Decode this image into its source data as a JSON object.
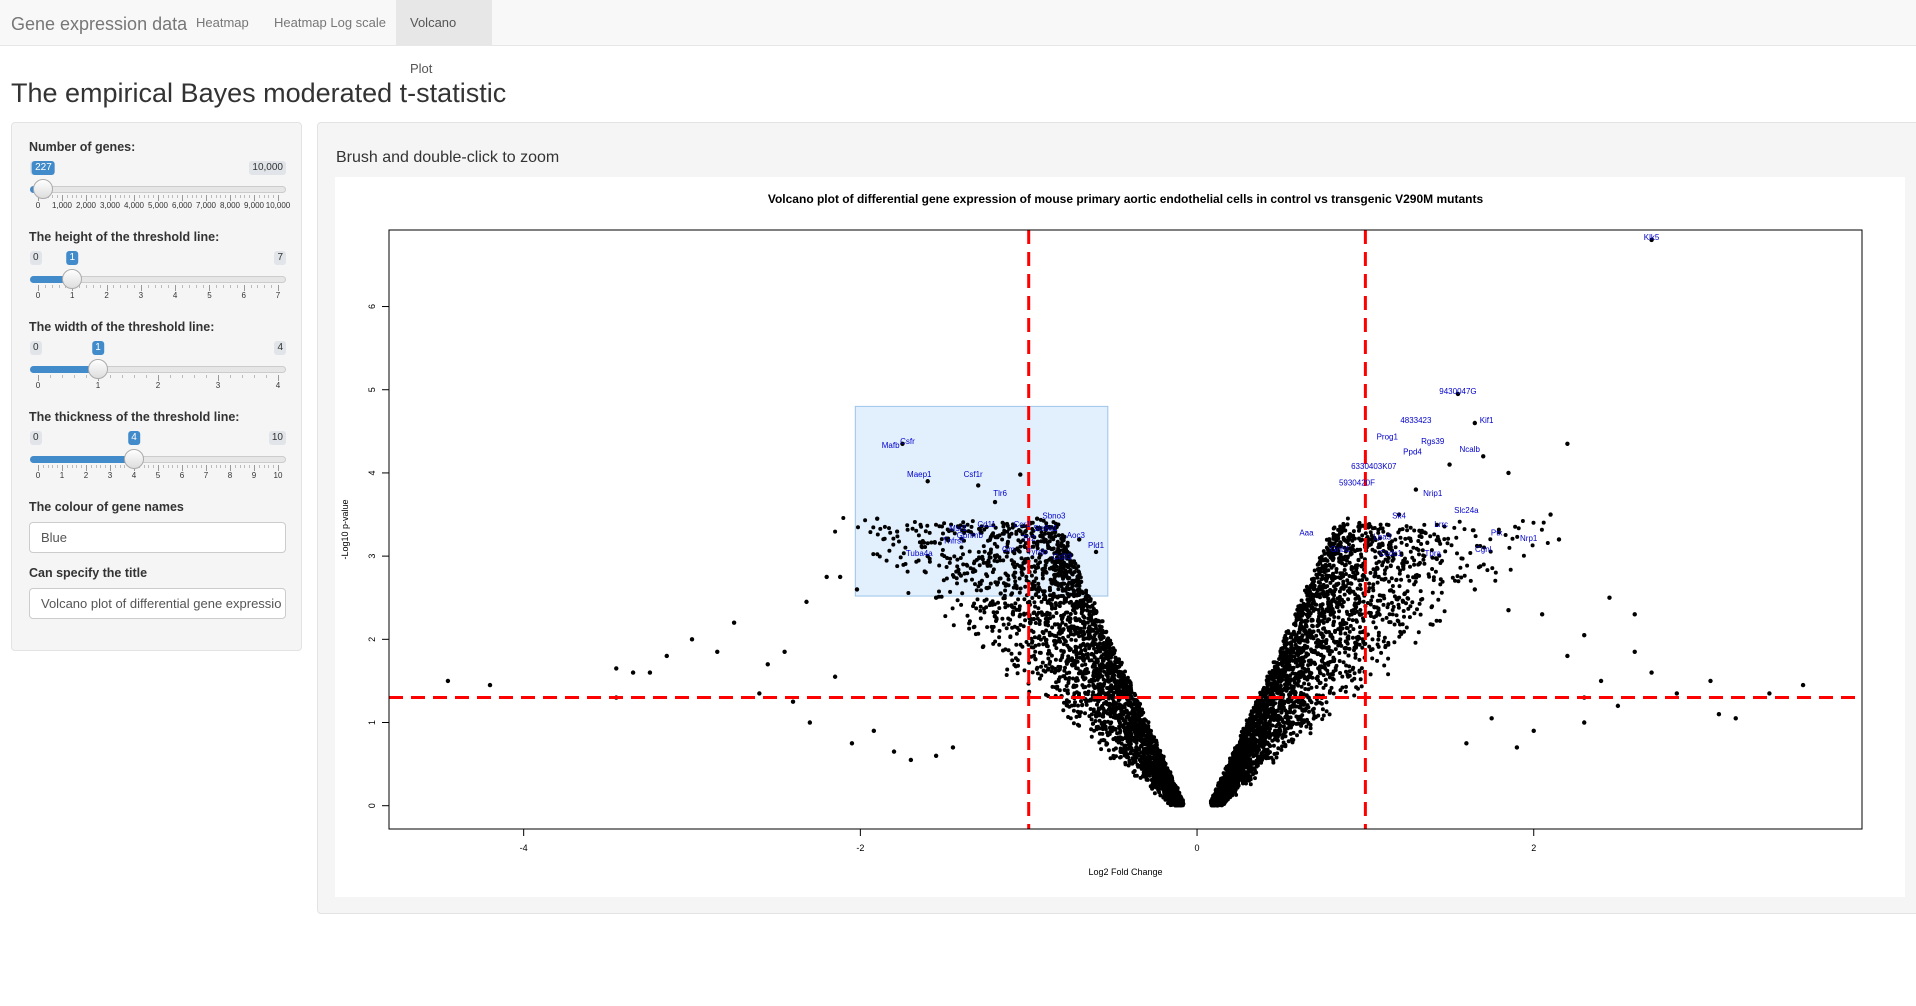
{
  "navbar": {
    "brand": "Gene expression data",
    "tabs": [
      {
        "label": "Heatmap",
        "active": false
      },
      {
        "label": "Heatmap Log scale",
        "active": false
      },
      {
        "label": "Volcano Plot",
        "active": true
      }
    ]
  },
  "page": {
    "title": "The empirical Bayes moderated t-statistic"
  },
  "sidebar": {
    "genes_slider": {
      "label": "Number of genes:",
      "min": 0,
      "max": 10000,
      "value": 227,
      "min_label": "0",
      "max_label": "10,000",
      "value_label": "227",
      "ticks": [
        "0",
        "1,000",
        "2,000",
        "3,000",
        "4,000",
        "5,000",
        "6,000",
        "7,000",
        "8,000",
        "9,000",
        "10,000"
      ]
    },
    "height_slider": {
      "label": "The height of the threshold line:",
      "min": 0,
      "max": 7,
      "value": 1,
      "min_label": "0",
      "max_label": "7",
      "value_label": "1",
      "ticks": [
        "0",
        "1",
        "2",
        "3",
        "4",
        "5",
        "6",
        "7"
      ]
    },
    "width_slider": {
      "label": "The width of the threshold line:",
      "min": 0,
      "max": 4,
      "value": 1,
      "min_label": "0",
      "max_label": "4",
      "value_label": "1",
      "ticks": [
        "0",
        "1",
        "2",
        "3",
        "4"
      ]
    },
    "thickness_slider": {
      "label": "The thickness of the threshold line:",
      "min": 0,
      "max": 10,
      "value": 4,
      "min_label": "0",
      "max_label": "10",
      "value_label": "4",
      "ticks": [
        "0",
        "1",
        "2",
        "3",
        "4",
        "5",
        "6",
        "7",
        "8",
        "9",
        "10"
      ]
    },
    "colour_input": {
      "label": "The colour of gene names",
      "value": "Blue"
    },
    "title_input": {
      "label": "Can specify the title",
      "value": "Volcano plot of differential gene expressio"
    }
  },
  "main": {
    "heading": "Brush and double-click to zoom"
  },
  "colors": {
    "accent": "#428bca",
    "threshold": "#ff0000",
    "points": "#000000",
    "gene_labels": "#0000cd",
    "brush": "#9cf"
  },
  "chart_data": {
    "type": "scatter",
    "title": "Volcano plot of differential gene expression of mouse primary aortic endothelial cells in control vs transgenic V290M mutants",
    "xlabel": "Log2 Fold Change",
    "ylabel": "-Log10 p-value",
    "xlim": [
      -4.8,
      3.95
    ],
    "ylim": [
      -0.28,
      6.92
    ],
    "x_ticks": [
      "-4",
      "-2",
      "0",
      "2"
    ],
    "y_ticks": [
      "0",
      "1",
      "2",
      "3",
      "4",
      "5",
      "6"
    ],
    "thresholds": {
      "x": [
        -1,
        1
      ],
      "y": 1.3
    },
    "brush": {
      "x": [
        -2.03,
        -0.53
      ],
      "y": [
        2.52,
        4.8
      ]
    },
    "points": [
      [
        -4.45,
        1.5
      ],
      [
        -4.2,
        1.45
      ],
      [
        -3.45,
        1.65
      ],
      [
        -3.45,
        1.3
      ],
      [
        -3.35,
        1.6
      ],
      [
        -3.25,
        1.6
      ],
      [
        -3.15,
        1.8
      ],
      [
        -3.0,
        2.0
      ],
      [
        -2.85,
        1.85
      ],
      [
        -2.75,
        2.2
      ],
      [
        -2.6,
        1.35
      ],
      [
        -2.55,
        1.7
      ],
      [
        -2.4,
        1.25
      ],
      [
        -2.3,
        1.0
      ],
      [
        -2.2,
        2.75
      ],
      [
        -2.32,
        2.45
      ],
      [
        -2.12,
        2.75
      ],
      [
        -2.45,
        1.85
      ],
      [
        -2.15,
        1.55
      ],
      [
        -2.05,
        0.75
      ],
      [
        -1.92,
        0.9
      ],
      [
        -1.8,
        0.65
      ],
      [
        -1.7,
        0.55
      ],
      [
        -1.55,
        0.6
      ],
      [
        -1.45,
        0.7
      ],
      [
        -2.02,
        2.6
      ],
      [
        -1.55,
        2.5
      ],
      [
        -1.9,
        3.45
      ],
      [
        -1.75,
        4.35
      ],
      [
        -1.6,
        3.9
      ],
      [
        -1.3,
        3.85
      ],
      [
        -1.38,
        3.3
      ],
      [
        -1.25,
        3.35
      ],
      [
        -1.2,
        3.65
      ],
      [
        -1.05,
        3.98
      ],
      [
        -0.95,
        3.45
      ],
      [
        -0.9,
        3.05
      ],
      [
        -0.8,
        3.25
      ],
      [
        -0.7,
        3.2
      ],
      [
        -0.6,
        3.05
      ],
      [
        -1.6,
        3.0
      ],
      [
        1.1,
        3.15
      ],
      [
        1.2,
        3.5
      ],
      [
        1.3,
        3.8
      ],
      [
        1.5,
        4.1
      ],
      [
        1.55,
        4.95
      ],
      [
        1.65,
        4.6
      ],
      [
        1.7,
        4.2
      ],
      [
        1.85,
        4.0
      ],
      [
        2.2,
        4.35
      ],
      [
        2.1,
        3.5
      ],
      [
        2.15,
        3.2
      ],
      [
        2.45,
        2.5
      ],
      [
        2.6,
        2.3
      ],
      [
        2.3,
        2.05
      ],
      [
        2.2,
        1.8
      ],
      [
        2.05,
        2.3
      ],
      [
        2.4,
        1.5
      ],
      [
        2.6,
        1.85
      ],
      [
        2.7,
        1.6
      ],
      [
        2.85,
        1.35
      ],
      [
        2.5,
        1.2
      ],
      [
        2.3,
        1.0
      ],
      [
        2.0,
        0.9
      ],
      [
        1.9,
        0.7
      ],
      [
        3.05,
        1.5
      ],
      [
        3.1,
        1.1
      ],
      [
        3.2,
        1.05
      ],
      [
        3.4,
        1.35
      ],
      [
        3.6,
        1.45
      ],
      [
        1.75,
        1.05
      ],
      [
        1.6,
        0.75
      ],
      [
        2.3,
        1.3
      ],
      [
        1.85,
        2.35
      ],
      [
        1.65,
        2.6
      ],
      [
        2.7,
        6.8
      ]
    ],
    "labels": [
      {
        "text": "Klk5",
        "x": 2.7,
        "y": 6.8
      },
      {
        "text": "9430047G",
        "x": 1.55,
        "y": 4.95
      },
      {
        "text": "4833423",
        "x": 1.3,
        "y": 4.6
      },
      {
        "text": "Kif1",
        "x": 1.72,
        "y": 4.6
      },
      {
        "text": "Prog1",
        "x": 1.13,
        "y": 4.4
      },
      {
        "text": "Rgs39",
        "x": 1.4,
        "y": 4.35
      },
      {
        "text": "Ppd4",
        "x": 1.28,
        "y": 4.22
      },
      {
        "text": "Ncalb",
        "x": 1.62,
        "y": 4.25
      },
      {
        "text": "6330403K07",
        "x": 1.05,
        "y": 4.05
      },
      {
        "text": "5930420F",
        "x": 0.95,
        "y": 3.85
      },
      {
        "text": "Nrip1",
        "x": 1.4,
        "y": 3.72
      },
      {
        "text": "Slc24a",
        "x": 1.6,
        "y": 3.52
      },
      {
        "text": "Ptx",
        "x": 1.78,
        "y": 3.25
      },
      {
        "text": "Nrp1",
        "x": 1.97,
        "y": 3.18
      },
      {
        "text": "Sk4",
        "x": 1.2,
        "y": 3.45
      },
      {
        "text": "Lrrc",
        "x": 1.45,
        "y": 3.35
      },
      {
        "text": "Lpa3",
        "x": 1.1,
        "y": 3.2
      },
      {
        "text": "Aaa",
        "x": 0.65,
        "y": 3.25
      },
      {
        "text": "Gnb1",
        "x": 0.85,
        "y": 3.05
      },
      {
        "text": "Ccdc1",
        "x": 1.15,
        "y": 3.0
      },
      {
        "text": "Tpra",
        "x": 1.4,
        "y": 3.0
      },
      {
        "text": "Cgnl",
        "x": 1.7,
        "y": 3.05
      },
      {
        "text": "Csfr",
        "x": -1.72,
        "y": 4.35
      },
      {
        "text": "Mafb",
        "x": -1.82,
        "y": 4.3
      },
      {
        "text": "Maep1",
        "x": -1.65,
        "y": 3.95
      },
      {
        "text": "Csf1r",
        "x": -1.33,
        "y": 3.95
      },
      {
        "text": "Tlr6",
        "x": -1.17,
        "y": 3.72
      },
      {
        "text": "Msr1",
        "x": -1.42,
        "y": 3.3
      },
      {
        "text": "Cd11",
        "x": -1.25,
        "y": 3.35
      },
      {
        "text": "Ccr1",
        "x": -1.04,
        "y": 3.35
      },
      {
        "text": "Sbno3",
        "x": -0.85,
        "y": 3.45
      },
      {
        "text": "Gpnmb",
        "x": -1.35,
        "y": 3.22
      },
      {
        "text": "Tnfrsf",
        "x": -1.45,
        "y": 3.15
      },
      {
        "text": "Slc8a1",
        "x": -0.9,
        "y": 3.3
      },
      {
        "text": "Tlr2",
        "x": -1.0,
        "y": 3.18
      },
      {
        "text": "Aoc3",
        "x": -0.72,
        "y": 3.22
      },
      {
        "text": "Pld1",
        "x": -0.6,
        "y": 3.1
      },
      {
        "text": "Gm",
        "x": -1.12,
        "y": 3.05
      },
      {
        "text": "Tyrob",
        "x": -0.95,
        "y": 3.02
      },
      {
        "text": "Cd33",
        "x": -0.8,
        "y": 2.96
      },
      {
        "text": "Tuba4a",
        "x": -1.65,
        "y": 3.0
      }
    ]
  }
}
